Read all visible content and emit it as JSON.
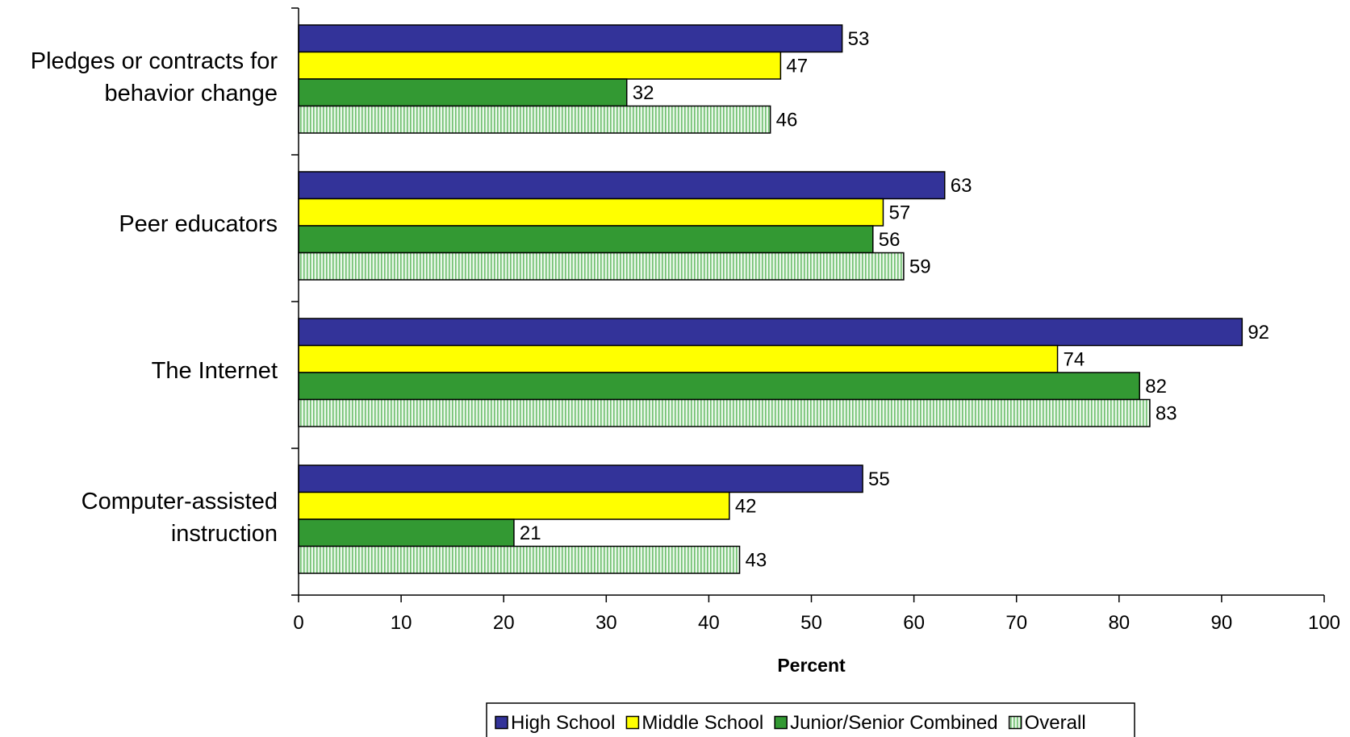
{
  "chart_data": {
    "type": "bar",
    "orientation": "horizontal",
    "categories": [
      "Pledges or contracts for behavior change",
      "Peer educators",
      "The Internet",
      "Computer-assisted instruction"
    ],
    "category_label_lines": [
      [
        "Pledges or contracts for",
        "behavior change"
      ],
      [
        "Peer educators"
      ],
      [
        "The Internet"
      ],
      [
        "Computer-assisted",
        "instruction"
      ]
    ],
    "series": [
      {
        "name": "High School",
        "values": [
          53,
          63,
          92,
          55
        ],
        "color": "#333399",
        "pattern": "solid"
      },
      {
        "name": "Middle School",
        "values": [
          47,
          57,
          74,
          42
        ],
        "color": "#FFFF00",
        "pattern": "solid"
      },
      {
        "name": "Junior/Senior Combined",
        "values": [
          32,
          56,
          82,
          21
        ],
        "color": "#339933",
        "pattern": "solid"
      },
      {
        "name": "Overall",
        "values": [
          46,
          59,
          83,
          43
        ],
        "color": "#CCFFCC",
        "pattern": "vertical-stripes"
      }
    ],
    "xlabel": "Percent",
    "xlim": [
      0,
      100
    ],
    "xticks": [
      0,
      10,
      20,
      30,
      40,
      50,
      60,
      70,
      80,
      90,
      100
    ],
    "data_labels": true,
    "grid": false,
    "legend_position": "bottom"
  }
}
